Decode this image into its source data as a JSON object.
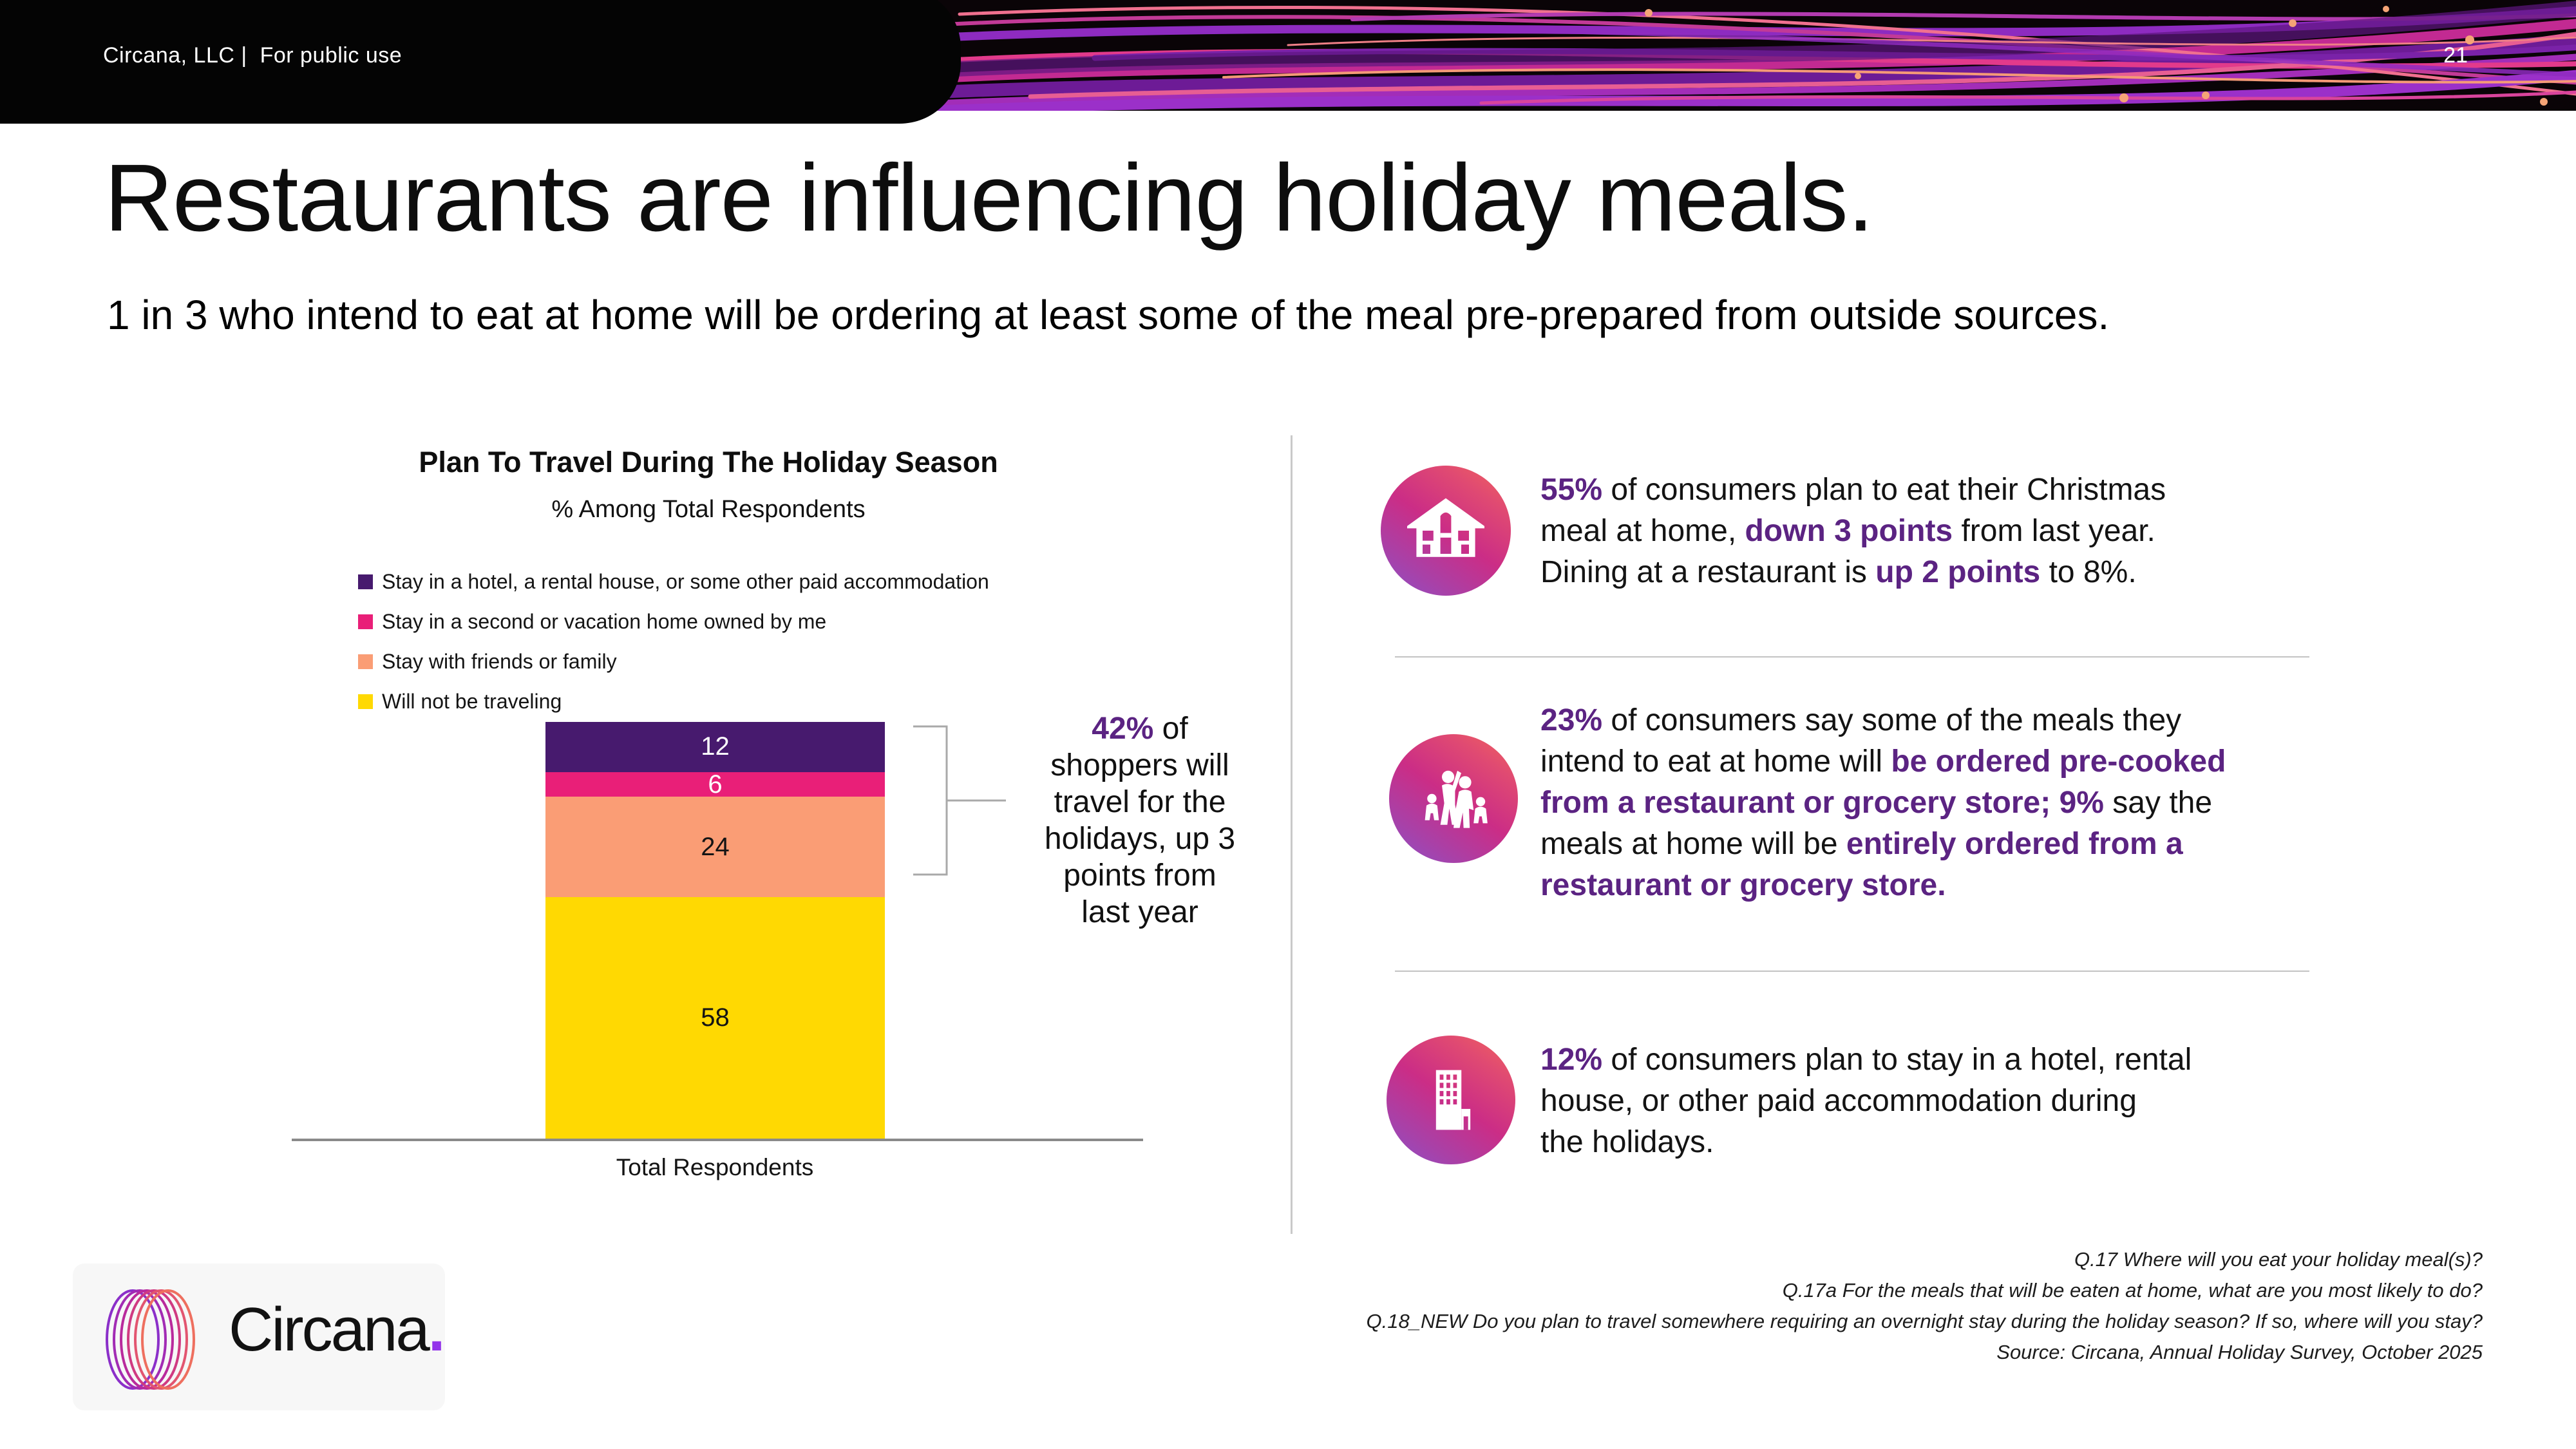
{
  "header": {
    "brand_line": "Circana, LLC |  For public use",
    "page_number": "21"
  },
  "title": "Restaurants are influencing holiday meals.",
  "subtitle": "1 in 3 who intend to eat at home will be ordering at least some of the meal pre-prepared from outside sources.",
  "chart_data": {
    "type": "bar",
    "stacked": true,
    "title": "Plan To Travel During The Holiday Season",
    "subtitle": "% Among Total Respondents",
    "categories": [
      "Total Respondents"
    ],
    "series": [
      {
        "name": "Stay in a hotel, a rental house, or some other paid accommodation",
        "values": [
          12
        ],
        "color": "#471a6e",
        "label_color": "#ffffff"
      },
      {
        "name": "Stay in a second or vacation home owned by me",
        "values": [
          6
        ],
        "color": "#e91f78",
        "label_color": "#ffffff"
      },
      {
        "name": "Stay with friends or family",
        "values": [
          24
        ],
        "color": "#fa9d75",
        "label_color": "#141414"
      },
      {
        "name": "Will not be traveling",
        "values": [
          58
        ],
        "color": "#ffd902",
        "label_color": "#141414"
      }
    ],
    "ylim": [
      0,
      100
    ],
    "grid": false,
    "legend_position": "top-left",
    "xlabel": "Total Respondents",
    "annotation": "42% of shoppers will travel for the holidays, up 3 points from last year"
  },
  "annotation_lines": [
    [
      {
        "t": "42%",
        "hl": true
      },
      {
        "t": " of",
        "hl": false
      }
    ],
    [
      {
        "t": "shoppers will",
        "hl": false
      }
    ],
    [
      {
        "t": "travel for the",
        "hl": false
      }
    ],
    [
      {
        "t": "holidays, up 3",
        "hl": false
      }
    ],
    [
      {
        "t": "points from",
        "hl": false
      }
    ],
    [
      {
        "t": "last year",
        "hl": false
      }
    ]
  ],
  "stats": [
    {
      "icon": "house-icon",
      "lines": [
        [
          {
            "t": "55%",
            "hl": true
          },
          {
            "t": " of consumers plan to eat their Christmas",
            "hl": false
          }
        ],
        [
          {
            "t": "meal at home, ",
            "hl": false
          },
          {
            "t": "down 3 points",
            "hl": true
          },
          {
            "t": " from last year.",
            "hl": false
          }
        ],
        [
          {
            "t": "Dining at a restaurant is ",
            "hl": false
          },
          {
            "t": "up 2 points",
            "hl": true
          },
          {
            "t": " to 8%.",
            "hl": false
          }
        ]
      ]
    },
    {
      "icon": "family-icon",
      "lines": [
        [
          {
            "t": "23%",
            "hl": true
          },
          {
            "t": " of consumers say some of the meals they",
            "hl": false
          }
        ],
        [
          {
            "t": "intend to eat at home will ",
            "hl": false
          },
          {
            "t": "be ordered pre-cooked",
            "hl": true
          }
        ],
        [
          {
            "t": "from a restaurant or grocery store; 9%",
            "hl": true
          },
          {
            "t": " say the",
            "hl": false
          }
        ],
        [
          {
            "t": "meals at home will be ",
            "hl": false
          },
          {
            "t": "entirely ordered from a",
            "hl": true
          }
        ],
        [
          {
            "t": "restaurant or grocery store.",
            "hl": true
          }
        ]
      ]
    },
    {
      "icon": "hotel-icon",
      "lines": [
        [
          {
            "t": "12%",
            "hl": true
          },
          {
            "t": " of consumers plan to stay in a hotel, rental",
            "hl": false
          }
        ],
        [
          {
            "t": "house, or other paid accommodation during",
            "hl": false
          }
        ],
        [
          {
            "t": "the holidays.",
            "hl": false
          }
        ]
      ]
    }
  ],
  "footer_lines": [
    "Q.17 Where will you eat your holiday meal(s)?",
    "Q.17a For the meals that will be eaten at home, what are you most likely to do?",
    "Q.18_NEW Do you plan to travel somewhere requiring an overnight stay during the holiday season? If so, where will you stay?",
    "Source: Circana, Annual Holiday Survey, October 2025"
  ],
  "logo": {
    "text": "Circana",
    "dot": "."
  },
  "colors": {
    "accent_purple": "#5b2382",
    "bar_purple": "#471a6e",
    "bar_pink": "#e91f78",
    "bar_salmon": "#fa9d75",
    "bar_yellow": "#ffd902",
    "icon_gradient_top": "#f2635d",
    "icon_gradient_bottom": "#8b51c9"
  }
}
